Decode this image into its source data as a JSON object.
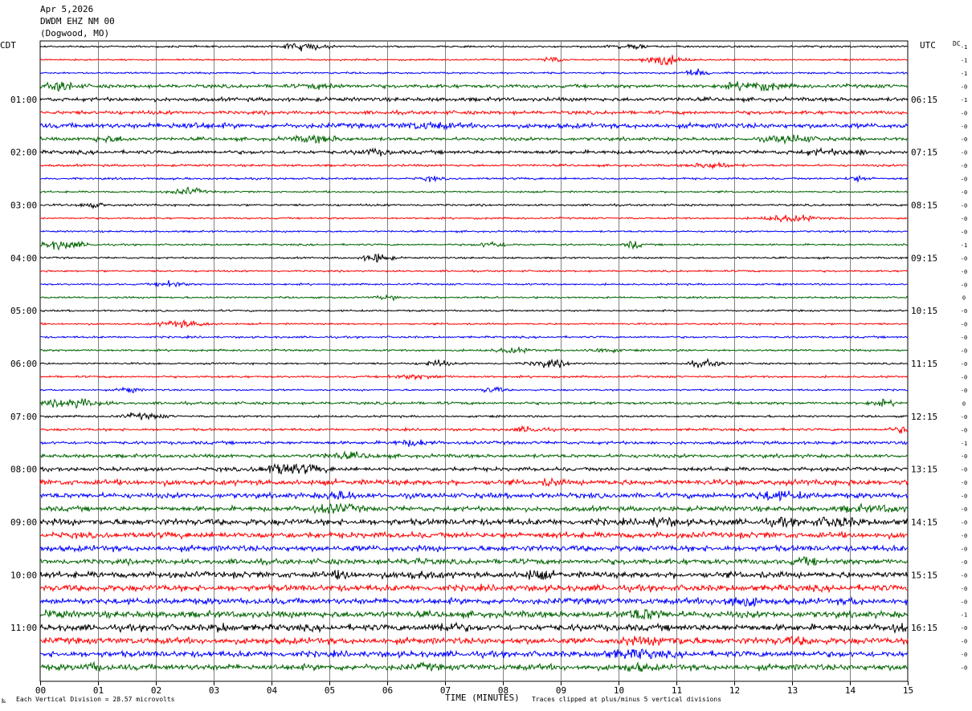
{
  "header": {
    "date": "Apr 5,2026",
    "station": "DWDM EHZ NM 00",
    "location": "(Dogwood, MO)"
  },
  "chart_data": {
    "type": "line",
    "kind": "helicorder",
    "left_tz_label": "CDT",
    "right_tz_label": "UTC",
    "dc_label": "DC",
    "xlabel": "TIME (MINUTES)",
    "x_ticks": [
      "00",
      "01",
      "02",
      "03",
      "04",
      "05",
      "06",
      "07",
      "08",
      "09",
      "10",
      "11",
      "12",
      "13",
      "14",
      "15"
    ],
    "xlim": [
      0,
      15
    ],
    "rows": 48,
    "trace_colors": [
      "#000000",
      "#ff0000",
      "#0000ff",
      "#006400"
    ],
    "left_hour_labels": [
      "01:00",
      "02:00",
      "03:00",
      "04:00",
      "05:00",
      "06:00",
      "07:00",
      "08:00",
      "09:00",
      "10:00",
      "11:00"
    ],
    "right_hour_labels": [
      "06:15",
      "07:15",
      "08:15",
      "09:15",
      "10:15",
      "11:15",
      "12:15",
      "13:15",
      "14:15",
      "15:15",
      "16:15"
    ],
    "dc_offsets": [
      "-1",
      "-1",
      "-1",
      "-0",
      "-1",
      "-0",
      "-0",
      "-0",
      "-0",
      "-0",
      "-0",
      "-0",
      "-0",
      "-0",
      "-0",
      "-1",
      "-0",
      "-0",
      "-0",
      "0",
      "-0",
      "-0",
      "-0",
      "-0",
      "-0",
      "-0",
      "-0",
      "0",
      "-0",
      "-0",
      "-1",
      "-0",
      "-0",
      "-0",
      "-0",
      "-0",
      "-0",
      "-0",
      "-0",
      "-0",
      "-0",
      "-0",
      "-0",
      "-1",
      "-0",
      "-0",
      "-0",
      "-0"
    ],
    "row_activity": [
      0.8,
      0.7,
      0.8,
      1.6,
      1.7,
      1.6,
      2.2,
      1.5,
      1.6,
      1.0,
      0.9,
      0.8,
      0.9,
      0.8,
      0.8,
      0.8,
      0.8,
      0.8,
      0.8,
      0.8,
      0.8,
      0.8,
      0.9,
      0.9,
      0.8,
      0.9,
      0.8,
      1.2,
      0.9,
      1.1,
      1.4,
      1.6,
      1.7,
      2.4,
      2.3,
      2.2,
      2.8,
      2.6,
      2.6,
      2.4,
      2.7,
      2.8,
      2.7,
      2.9,
      2.9,
      2.8,
      2.7,
      2.7
    ],
    "footer_left": "Each Vertical Division =   28.57 microvolts",
    "footer_right": "Traces clipped at plus/minus 5 vertical divisions"
  }
}
